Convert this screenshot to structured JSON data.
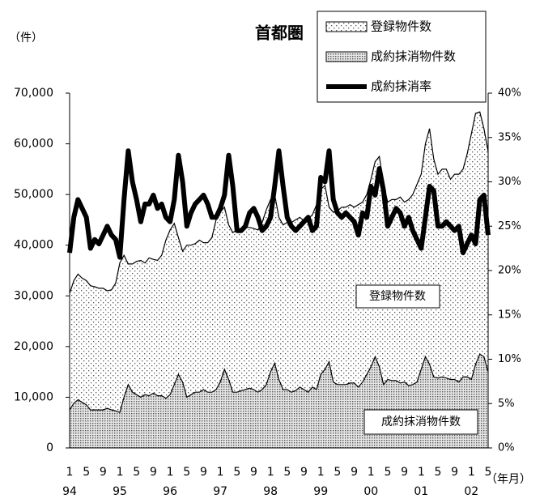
{
  "chart_data": {
    "type": "area-line",
    "title": "首都圏",
    "y_label": "（件）",
    "x_label": "（年月）",
    "categories": [
      "1",
      null,
      null,
      null,
      "5",
      null,
      null,
      null,
      "9",
      null,
      null,
      null,
      "1",
      null,
      null,
      null,
      "5",
      null,
      null,
      null,
      "9",
      null,
      null,
      null,
      "1",
      null,
      null,
      null,
      "5",
      null,
      null,
      null,
      "9",
      null,
      null,
      null,
      "1",
      null,
      null,
      null,
      "5",
      null,
      null,
      null,
      "9",
      null,
      null,
      null,
      "1",
      null,
      null,
      null,
      "5",
      null,
      null,
      null,
      "9",
      null,
      null,
      null,
      "1",
      null,
      null,
      null,
      "5",
      null,
      null,
      null,
      "9",
      null,
      null,
      null,
      "1",
      null,
      null,
      null,
      "5",
      null,
      null,
      null,
      "9",
      null,
      null,
      null,
      "1",
      null,
      null,
      null,
      "5",
      null,
      null,
      null,
      "9",
      null,
      null,
      null,
      "1",
      null,
      null,
      null,
      "5"
    ],
    "year_labels": [
      "94",
      "95",
      "96",
      "97",
      "98",
      "99",
      "00",
      "01",
      "02"
    ],
    "series": [
      {
        "name": "登録物件数",
        "type": "area",
        "pattern": "sparse",
        "color": "#000000",
        "values": [
          30500,
          33000,
          34300,
          33500,
          33000,
          32000,
          31800,
          31500,
          31500,
          31000,
          31200,
          32500,
          36500,
          38000,
          36300,
          36300,
          36800,
          37000,
          36500,
          37500,
          37200,
          37000,
          38000,
          41000,
          43000,
          44300,
          41500,
          38800,
          40000,
          40000,
          40300,
          41000,
          40500,
          40500,
          41500,
          45000,
          46500,
          47500,
          44000,
          42500,
          43000,
          43000,
          43500,
          43500,
          43300,
          43000,
          44500,
          47000,
          49000,
          50000,
          45500,
          44000,
          44500,
          44500,
          45000,
          45500,
          44800,
          45200,
          46000,
          48000,
          51000,
          51800,
          47500,
          46500,
          46800,
          47500,
          47500,
          48000,
          47500,
          48000,
          48500,
          50000,
          53000,
          56500,
          57500,
          52000,
          48500,
          49000,
          49000,
          49500,
          48500,
          49000,
          50000,
          52000,
          54000,
          60000,
          63000,
          57000,
          54000,
          55000,
          55000,
          53000,
          54000,
          54000,
          55000,
          58000,
          62000,
          66000,
          66300,
          63000,
          58500
        ]
      },
      {
        "name": "成約抹消物件数",
        "type": "area",
        "pattern": "dense",
        "color": "#000000",
        "values": [
          7500,
          8800,
          9500,
          9000,
          8500,
          7500,
          7500,
          7500,
          7500,
          7800,
          7500,
          7300,
          7000,
          10000,
          12500,
          11000,
          10500,
          10000,
          10500,
          10300,
          10800,
          10300,
          10300,
          9800,
          10500,
          12500,
          14500,
          13000,
          10000,
          10500,
          11000,
          11000,
          11500,
          11000,
          11000,
          11500,
          13000,
          15500,
          13500,
          11000,
          11000,
          11300,
          11500,
          11800,
          11500,
          11000,
          11500,
          12500,
          15000,
          16700,
          13500,
          11500,
          11500,
          11000,
          11300,
          12000,
          11500,
          11000,
          12000,
          11500,
          14500,
          15500,
          17000,
          13000,
          12500,
          12500,
          12500,
          12800,
          12800,
          12000,
          13000,
          14500,
          16000,
          18000,
          16000,
          12500,
          13500,
          13300,
          13300,
          12800,
          13000,
          12300,
          12500,
          13000,
          15500,
          18000,
          16500,
          14000,
          13800,
          14000,
          13800,
          13500,
          13500,
          13000,
          14000,
          14000,
          13500,
          16500,
          18500,
          18000,
          15000
        ]
      },
      {
        "name": "成約抹消率",
        "type": "line",
        "axis": "y2",
        "color": "#000000",
        "values": [
          22,
          26,
          28,
          27,
          26,
          22.5,
          23.5,
          23,
          24,
          25,
          24,
          23.5,
          21.5,
          28,
          33.5,
          30,
          28,
          25.5,
          27.5,
          27.5,
          28.5,
          27,
          27.5,
          26,
          25.5,
          28,
          33,
          30,
          25,
          26.5,
          27.5,
          28,
          28.5,
          27.5,
          26,
          26,
          27,
          28.5,
          33,
          29.5,
          24.5,
          24.5,
          25,
          26.5,
          27,
          26,
          24.5,
          25,
          26,
          29.5,
          33.5,
          29.5,
          26,
          25,
          24.5,
          25,
          25.5,
          26,
          24.5,
          25,
          30.5,
          30,
          33.5,
          28,
          26.5,
          26,
          26.5,
          26,
          25.5,
          24,
          26.5,
          26,
          29.5,
          28.5,
          31.5,
          29,
          25,
          26,
          27,
          26.5,
          25,
          26,
          24.5,
          23.5,
          22.5,
          26,
          29.5,
          29,
          25,
          25,
          25.5,
          25,
          24.5,
          25,
          22,
          23,
          24,
          23,
          28,
          28.5,
          24
        ]
      }
    ],
    "annotations": [
      "登録物件数",
      "成約抹消物件数"
    ],
    "ylim": [
      0,
      70000
    ],
    "yticks": [
      0,
      {
        "value": 10000,
        "label": "10,000"
      },
      {
        "value": 20000,
        "label": "20,000"
      },
      {
        "value": 30000,
        "label": "30,000"
      },
      {
        "value": 40000,
        "label": "40,000"
      },
      {
        "value": 50000,
        "label": "50,000"
      },
      {
        "value": 60000,
        "label": "60,000"
      },
      {
        "value": 70000,
        "label": "70,000"
      }
    ],
    "y2lim": [
      0,
      40
    ],
    "y2ticks": [
      {
        "value": 0,
        "label": "0%"
      },
      {
        "value": 5,
        "label": "5%"
      },
      {
        "value": 10,
        "label": "10%"
      },
      {
        "value": 15,
        "label": "15%"
      },
      {
        "value": 20,
        "label": "20%"
      },
      {
        "value": 25,
        "label": "25%"
      },
      {
        "value": 30,
        "label": "30%"
      },
      {
        "value": 35,
        "label": "35%"
      },
      {
        "value": 40,
        "label": "40%"
      }
    ],
    "legend": "top-right"
  }
}
